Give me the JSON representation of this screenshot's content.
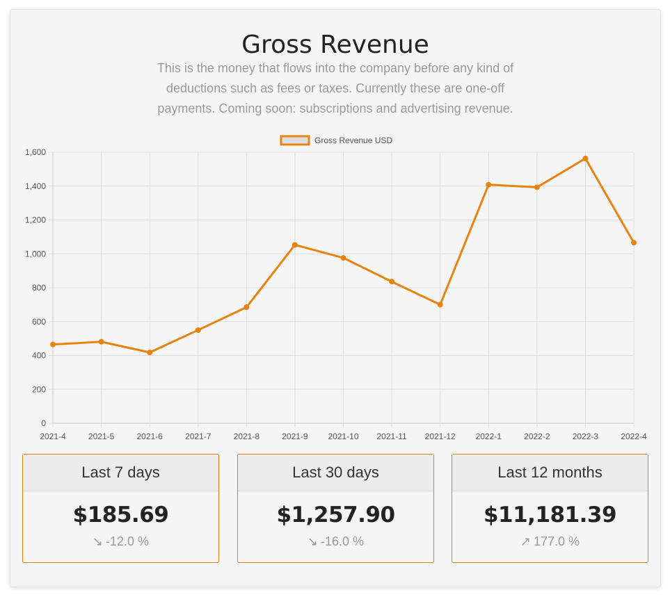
{
  "header": {
    "title": "Gross Revenue",
    "description": "This is the money that flows into the company before any kind of deductions such as fees or taxes. Currently these are one-off payments. Coming soon: subscriptions and advertising revenue."
  },
  "chart_data": {
    "type": "line",
    "title": "",
    "xlabel": "",
    "ylabel": "",
    "categories": [
      "2021-4",
      "2021-5",
      "2021-6",
      "2021-7",
      "2021-8",
      "2021-9",
      "2021-10",
      "2021-11",
      "2021-12",
      "2022-1",
      "2022-2",
      "2022-3",
      "2022-4"
    ],
    "series": [
      {
        "name": "Gross Revenue USD",
        "values": [
          465,
          481,
          418,
          550,
          685,
          1053,
          976,
          836,
          700,
          1408,
          1393,
          1563,
          1066
        ]
      }
    ],
    "ylim": [
      0,
      1600
    ],
    "yticks": [
      "0",
      "200",
      "400",
      "600",
      "800",
      "1,000",
      "1,200",
      "1,400",
      "1,600"
    ],
    "grid": true,
    "legend_position": "top",
    "colors": {
      "line": "#e8830f",
      "legend_fill": "#dddddd",
      "grid": "#dddddd"
    }
  },
  "stats": [
    {
      "label": "Last 7 days",
      "value": "$185.69",
      "arrow": "↘",
      "change": "-12.0 %"
    },
    {
      "label": "Last 30 days",
      "value": "$1,257.90",
      "arrow": "↘",
      "change": "-16.0 %"
    },
    {
      "label": "Last 12 months",
      "value": "$11,181.39",
      "arrow": "↗",
      "change": "177.0 %"
    }
  ]
}
